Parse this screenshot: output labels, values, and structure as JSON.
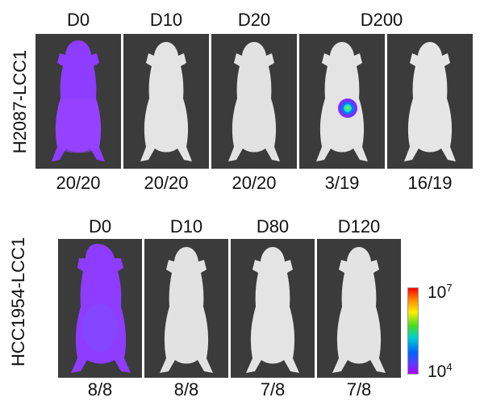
{
  "row1": {
    "label": "H2087-LCC1",
    "panels": [
      {
        "day": "D0",
        "ratio": "20/20",
        "signal": "whole-body"
      },
      {
        "day": "D10",
        "ratio": "20/20",
        "signal": "none"
      },
      {
        "day": "D20",
        "ratio": "20/20",
        "signal": "none"
      },
      {
        "day": "D200",
        "ratio": "3/19",
        "signal": "focal"
      },
      {
        "day": "",
        "ratio": "16/19",
        "signal": "none"
      }
    ]
  },
  "row2": {
    "label": "HCC1954-LCC1",
    "panels": [
      {
        "day": "D0",
        "ratio": "8/8",
        "signal": "whole-body"
      },
      {
        "day": "D10",
        "ratio": "8/8",
        "signal": "none"
      },
      {
        "day": "D80",
        "ratio": "7/8",
        "signal": "none"
      },
      {
        "day": "D120",
        "ratio": "7/8",
        "signal": "none"
      }
    ]
  },
  "scale": {
    "max_base": "10",
    "max_exp": "7",
    "min_base": "10",
    "min_exp": "4",
    "colors": [
      "#ff0000",
      "#ff8800",
      "#ffee00",
      "#44dd22",
      "#00d0d0",
      "#0066ff",
      "#5a3cff",
      "#b000ff"
    ]
  }
}
